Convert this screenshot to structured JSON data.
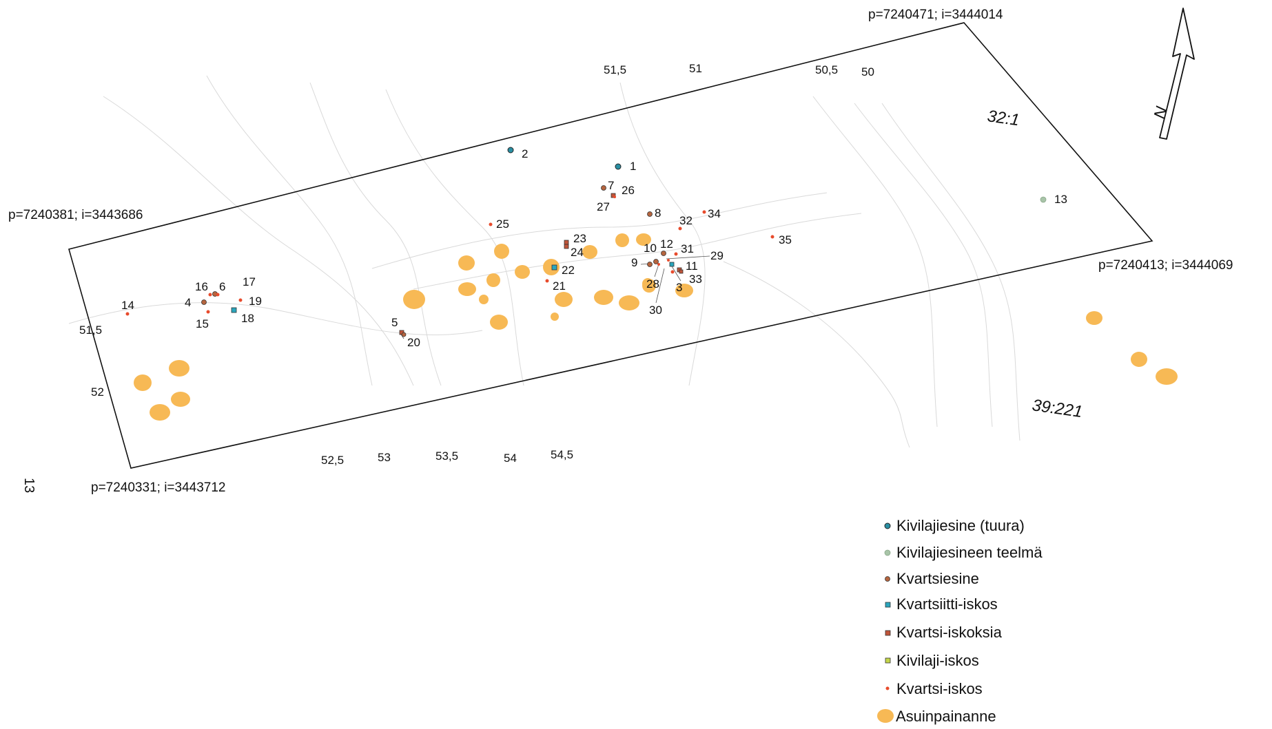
{
  "map": {
    "corners": [
      {
        "text": "p=7240471; i=3444014"
      },
      {
        "text": "p=7240381; i=3443686"
      },
      {
        "text": "p=7240413; i=3444069"
      },
      {
        "text": "p=7240331; i=3443712"
      }
    ],
    "site_labels": [
      "32:1",
      "39:221"
    ],
    "sheet_number": "13",
    "north_label": "N",
    "contour_labels": [
      "51,5",
      "51",
      "50,5",
      "50",
      "51,5",
      "52",
      "52,5",
      "53",
      "53,5",
      "54",
      "54,5"
    ],
    "colors": {
      "stone_tool": "#2a8fa3",
      "stone_work": "#a8c4a8",
      "quartz_tool": "#b5653f",
      "quartzite_flake": "#2aa6bd",
      "quartz_flakes": "#c0553a",
      "stone_flake": "#c4d64a",
      "quartz_flake": "#e84b2c",
      "pit": "#f7b955"
    },
    "finds": [
      {
        "n": "1",
        "type": "stone_tool"
      },
      {
        "n": "2",
        "type": "stone_tool"
      },
      {
        "n": "3",
        "type": "quartz_flake"
      },
      {
        "n": "4",
        "type": "quartz_tool"
      },
      {
        "n": "5",
        "type": "quartz_flakes"
      },
      {
        "n": "6",
        "type": "quartz_tool"
      },
      {
        "n": "7",
        "type": "quartz_tool"
      },
      {
        "n": "8",
        "type": "quartz_tool"
      },
      {
        "n": "9",
        "type": "quartz_tool"
      },
      {
        "n": "10",
        "type": "quartz_tool"
      },
      {
        "n": "11",
        "type": "quartz_flakes"
      },
      {
        "n": "12",
        "type": "quartz_tool"
      },
      {
        "n": "13",
        "type": "stone_work"
      },
      {
        "n": "14",
        "type": "quartz_flake"
      },
      {
        "n": "15",
        "type": "quartz_flake"
      },
      {
        "n": "16",
        "type": "quartz_flake"
      },
      {
        "n": "17",
        "type": "quartz_flake"
      },
      {
        "n": "18",
        "type": "quartzite_flake"
      },
      {
        "n": "19",
        "type": "quartz_flake"
      },
      {
        "n": "20",
        "type": "quartz_tool"
      },
      {
        "n": "21",
        "type": "quartz_flake"
      },
      {
        "n": "22",
        "type": "quartzite_flake"
      },
      {
        "n": "23",
        "type": "quartz_flakes"
      },
      {
        "n": "24",
        "type": "quartz_flakes"
      },
      {
        "n": "25",
        "type": "quartz_flake"
      },
      {
        "n": "26",
        "type": "quartz_flakes"
      },
      {
        "n": "27",
        "type": "quartz_flake"
      },
      {
        "n": "28",
        "type": "quartz_flake"
      },
      {
        "n": "29",
        "type": "quartz_flake"
      },
      {
        "n": "30",
        "type": "quartzite_flake"
      },
      {
        "n": "31",
        "type": "quartz_flake"
      },
      {
        "n": "32",
        "type": "quartz_flake"
      },
      {
        "n": "33",
        "type": "quartz_flakes"
      },
      {
        "n": "34",
        "type": "quartz_flake"
      },
      {
        "n": "35",
        "type": "quartz_flake"
      }
    ]
  },
  "legend": [
    {
      "label": "Kivilajiesine (tuura)",
      "type": "stone_tool"
    },
    {
      "label": "Kivilajiesineen teelmä",
      "type": "stone_work"
    },
    {
      "label": "Kvartsiesine",
      "type": "quartz_tool"
    },
    {
      "label": "Kvartsiitti-iskos",
      "type": "quartzite_flake"
    },
    {
      "label": "Kvartsi-iskoksia",
      "type": "quartz_flakes"
    },
    {
      "label": "Kivilaji-iskos",
      "type": "stone_flake"
    },
    {
      "label": "Kvartsi-iskos",
      "type": "quartz_flake"
    },
    {
      "label": "Asuinpainanne",
      "type": "pit"
    }
  ]
}
